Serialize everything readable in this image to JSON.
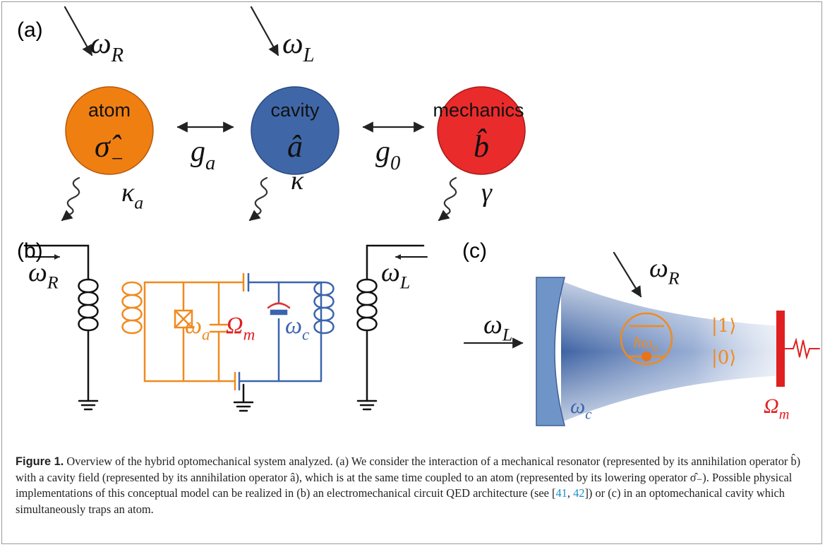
{
  "panels": {
    "a": {
      "label": "(a)",
      "drives": [
        {
          "base": "ω",
          "sub": "R"
        },
        {
          "base": "ω",
          "sub": "L"
        }
      ],
      "nodes": [
        {
          "name": "atom",
          "operator": {
            "base": "σ̂",
            "sub": "−"
          },
          "decay": {
            "base": "κ",
            "sub": "a"
          }
        },
        {
          "name": "cavity",
          "operator": {
            "base": "â"
          },
          "decay": {
            "base": "κ"
          }
        },
        {
          "name": "mechanics",
          "operator": {
            "base": "b̂"
          },
          "decay": {
            "base": "γ"
          }
        }
      ],
      "couplings": [
        {
          "base": "g",
          "sub": "a"
        },
        {
          "base": "g",
          "sub": "0"
        }
      ]
    },
    "b": {
      "label": "(b)",
      "drive_left": {
        "base": "ω",
        "sub": "R"
      },
      "drive_right": {
        "base": "ω",
        "sub": "L"
      },
      "atom": {
        "base": "ω",
        "sub": "a"
      },
      "mechanics": {
        "base": "Ω",
        "sub": "m"
      },
      "cavity": {
        "base": "ω",
        "sub": "c"
      }
    },
    "c": {
      "label": "(c)",
      "drive_side": {
        "base": "ω",
        "sub": "L"
      },
      "drive_top": {
        "base": "ω",
        "sub": "R"
      },
      "level_excited": "|1⟩",
      "level_ground": "|0⟩",
      "transition": {
        "base": "ħω",
        "sub": "a"
      },
      "cavity": {
        "base": "ω",
        "sub": "c"
      },
      "mechanics": {
        "base": "Ω",
        "sub": "m"
      }
    }
  },
  "caption": {
    "label": "Figure 1.",
    "parts": [
      "Overview of the hybrid optomechanical system analyzed. (a) We consider the interaction of a mechanical resonator (represented by its annihilation operator b̂) with a cavity field (represented by its annihilation operator â), which is at the same time coupled to an atom (represented by its lowering operator σ̂₋). Possible physical implementations of this conceptual model can be realized in (b) an electromechanical circuit QED architecture (see [",
      "]) or (c) in an optomechanical cavity which simultaneously traps an atom."
    ],
    "refs": [
      "41",
      "42"
    ]
  }
}
